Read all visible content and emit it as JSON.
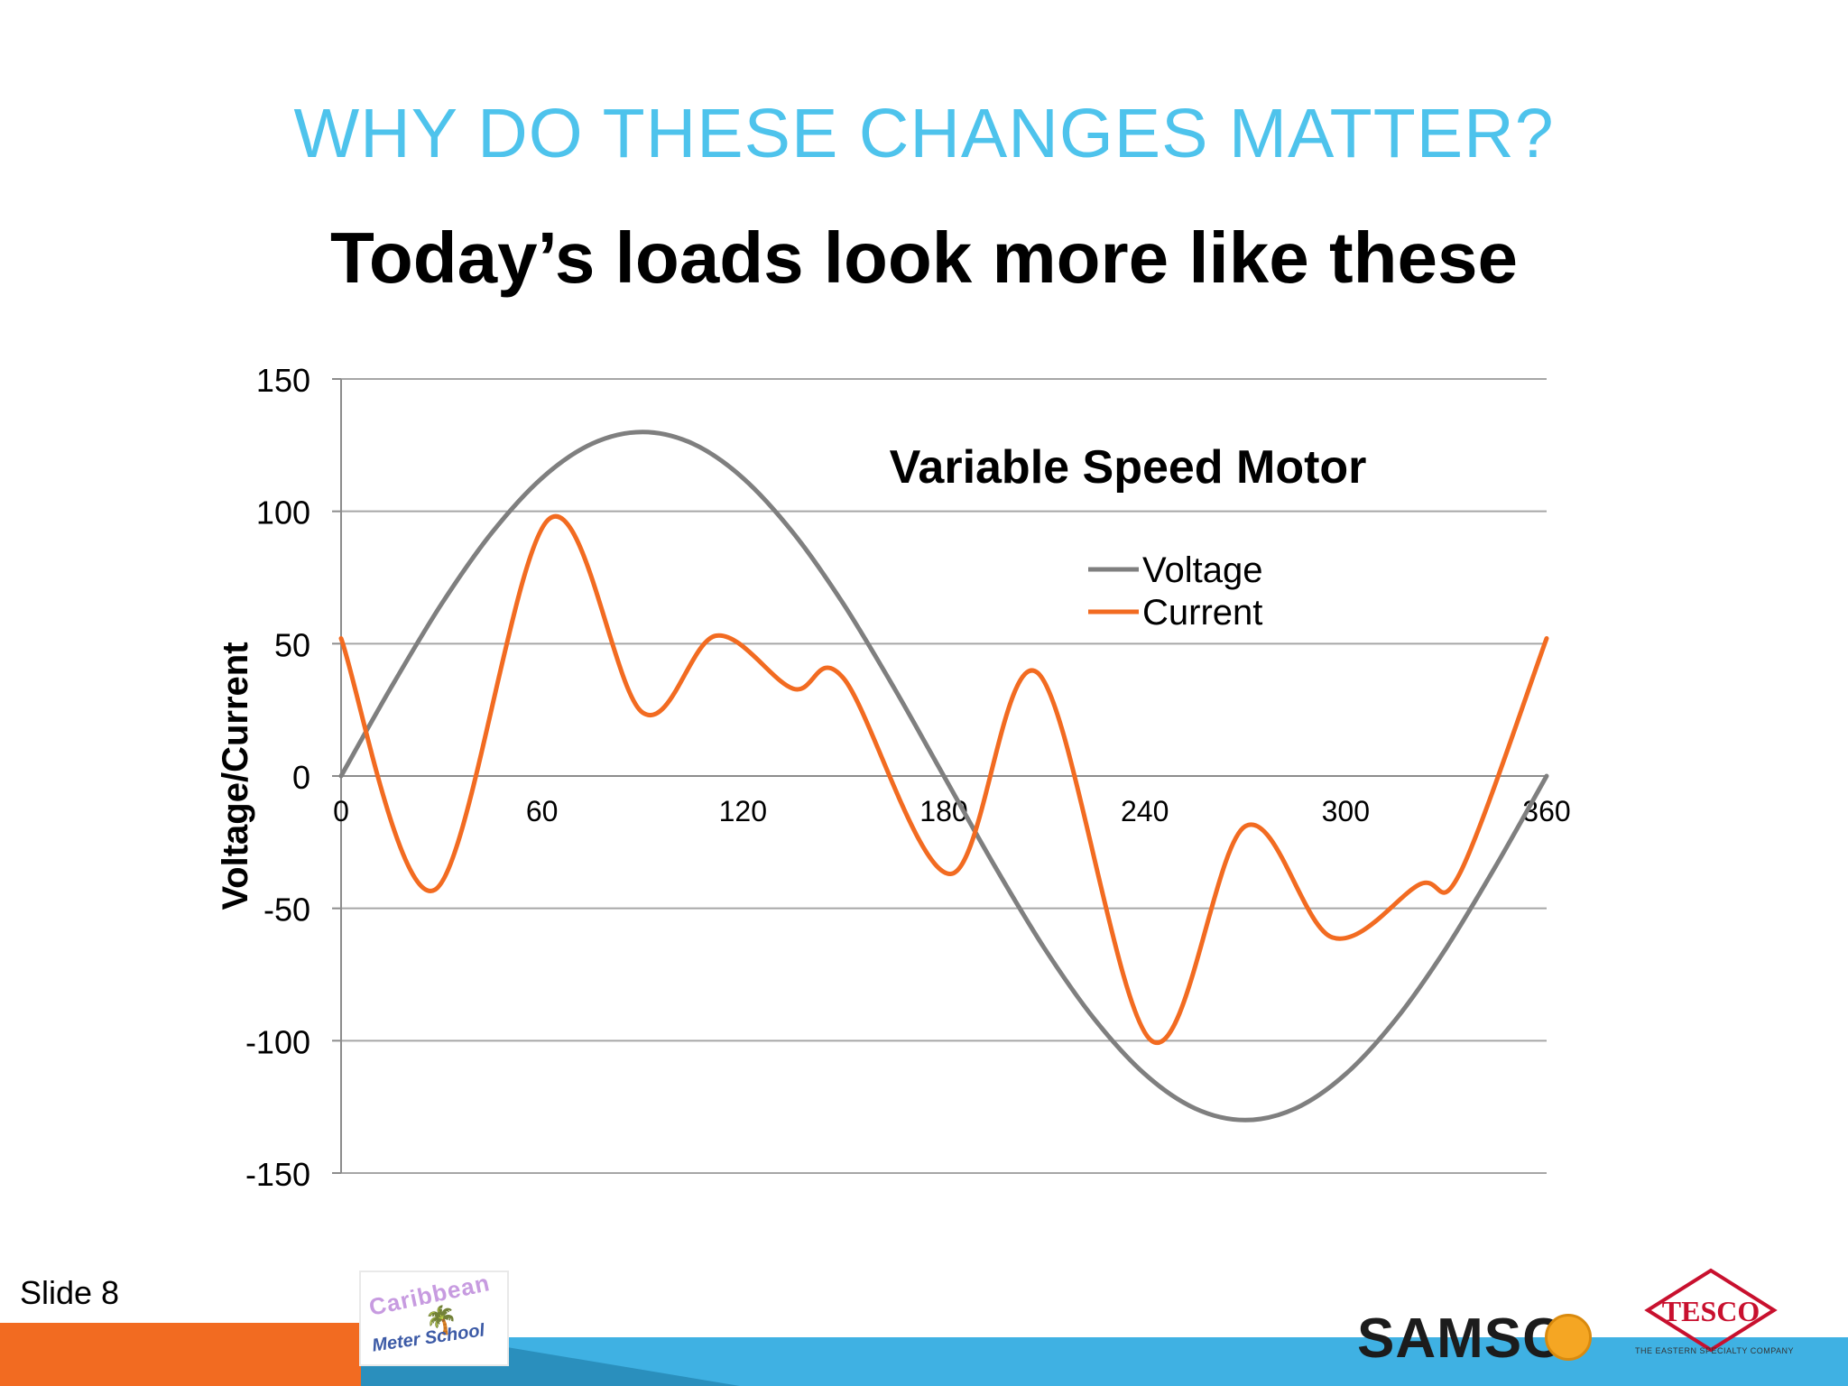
{
  "slide": {
    "heading": "WHY DO THESE CHANGES MATTER?",
    "subtitle": "Today’s loads look more like these",
    "slide_number": "Slide 8"
  },
  "logos": {
    "caribbean_line1": "Caribbean",
    "caribbean_line2": "Meter School",
    "samsco": "SAMSC",
    "tesco": "TESCO",
    "tesco_sub": "THE EASTERN SPECIALTY COMPANY"
  },
  "colors": {
    "heading": "#4ec3ec",
    "voltage": "#7f7f7f",
    "current": "#f26b21",
    "footer_blue": "#3fb1e3",
    "footer_orange": "#f26b21"
  },
  "chart_data": {
    "type": "line",
    "title": "Variable Speed Motor",
    "xlabel": "",
    "ylabel": "Voltage/Current",
    "xlim": [
      0,
      360
    ],
    "ylim": [
      -150,
      150
    ],
    "x_ticks": [
      "0",
      "60",
      "120",
      "180",
      "240",
      "300",
      "360"
    ],
    "y_ticks": [
      "150",
      "100",
      "50",
      "0",
      "-50",
      "-100",
      "-150"
    ],
    "grid": true,
    "legend": "upper-right",
    "series": [
      {
        "name": "Voltage",
        "color": "#7f7f7f",
        "x": [
          0,
          15,
          30,
          45,
          60,
          75,
          90,
          105,
          120,
          135,
          150,
          165,
          180,
          195,
          210,
          225,
          240,
          255,
          270,
          285,
          300,
          315,
          330,
          345,
          360
        ],
        "y": [
          0,
          33.6,
          65,
          91.9,
          112.6,
          125.6,
          130,
          125.6,
          112.6,
          91.9,
          65,
          33.6,
          0,
          -33.6,
          -65,
          -91.9,
          -112.6,
          -125.6,
          -130,
          -125.6,
          -112.6,
          -91.9,
          -65,
          -33.6,
          0
        ]
      },
      {
        "name": "Current",
        "color": "#f26b21",
        "x": [
          0,
          28,
          62,
          90,
          112,
          135,
          150,
          182,
          208,
          242,
          270,
          296,
          322,
          334,
          360
        ],
        "y": [
          52,
          -43,
          97,
          24,
          53,
          33,
          37,
          -37,
          39,
          -100,
          -19,
          -61,
          -41,
          -37,
          52
        ]
      }
    ]
  }
}
